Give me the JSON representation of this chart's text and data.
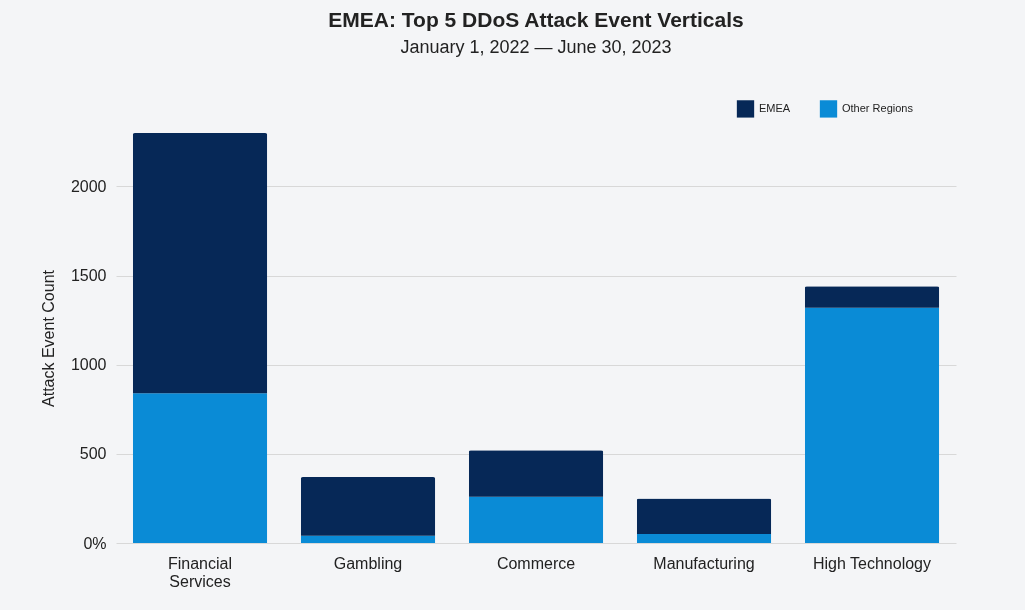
{
  "chart_data": {
    "type": "bar",
    "title": "EMEA: Top 5 DDoS Attack Event Verticals",
    "subtitle": "January 1, 2022 — June 30, 2023",
    "ylabel": "Attack Event Count",
    "categories": [
      "Financial Services",
      "Gambling",
      "Commerce",
      "Manufacturing",
      "High Technology"
    ],
    "stacked": true,
    "series": [
      {
        "name": "Other Regions",
        "color": "#0a8bd6",
        "values": [
          840,
          40,
          260,
          50,
          1320
        ]
      },
      {
        "name": "EMEA",
        "color": "#062857",
        "values": [
          1460,
          330,
          260,
          200,
          120
        ]
      }
    ],
    "ylim": [
      0,
      2300
    ],
    "yticks": [
      {
        "value": 0,
        "label": "0%"
      },
      500,
      1000,
      1500,
      2000
    ],
    "grid": "y",
    "legend": "top right"
  }
}
